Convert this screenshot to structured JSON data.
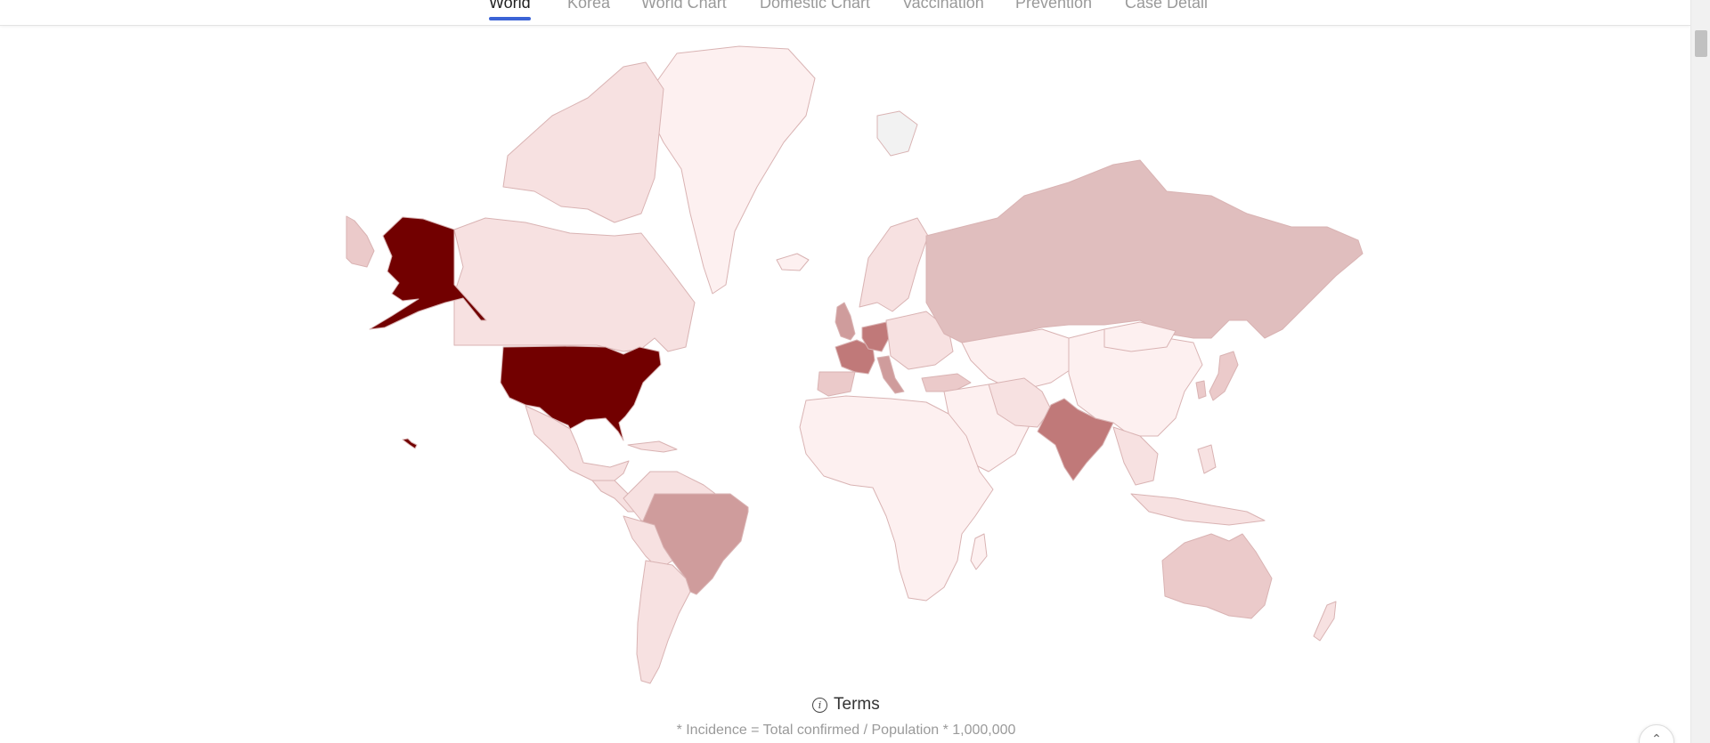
{
  "nav": {
    "tabs": [
      {
        "label": "World",
        "active": true
      },
      {
        "label": "Korea",
        "active": false
      },
      {
        "label": "World Chart",
        "active": false
      },
      {
        "label": "Domestic Chart",
        "active": false
      },
      {
        "label": "Vaccination",
        "active": false
      },
      {
        "label": "Prevention",
        "active": false
      },
      {
        "label": "Case Detail",
        "active": false
      }
    ]
  },
  "map": {
    "color_scale": {
      "very_low": "#fdf0f0",
      "low": "#f7e1e1",
      "mid_low": "#ebcaca",
      "mid": "#e0bebe",
      "mid_high": "#cf9c9c",
      "high": "#c07979",
      "max": "#720000",
      "no_data": "#f2f2f2"
    },
    "icons": {
      "info": "info-icon",
      "scroll_top": "chevron-up-icon"
    }
  },
  "footer": {
    "terms_label": "Terms",
    "note": "* Incidence = Total confirmed / Population * 1,000,000"
  }
}
